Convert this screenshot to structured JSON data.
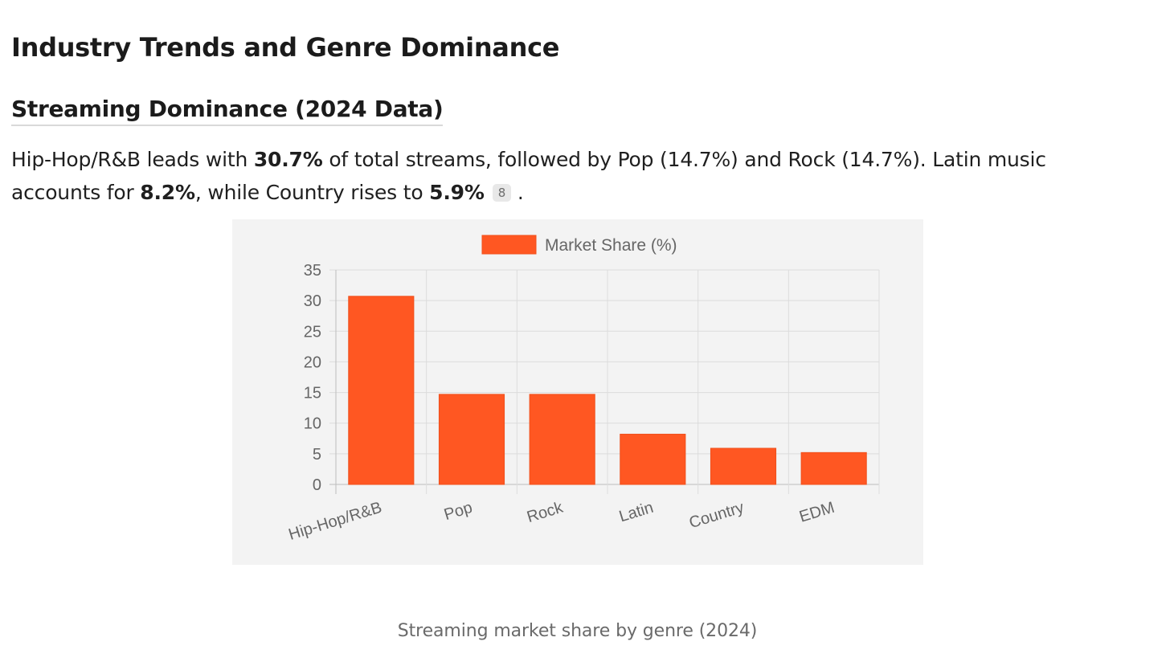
{
  "heading": {
    "title": "Industry Trends and Genre Dominance"
  },
  "section": {
    "title": "Streaming Dominance (2024 Data)"
  },
  "paragraph": {
    "p1": "Hip-Hop/R&B leads with ",
    "b1": "30.7%",
    "p2": " of total streams, followed by Pop (14.7%) and Rock (14.7%). Latin music accounts for ",
    "b2": "8.2%",
    "p3": ", while Country rises to ",
    "b3": "5.9%",
    "citation": "8",
    "p4": "."
  },
  "caption": "Streaming market share by genre (2024)",
  "chart_data": {
    "type": "bar",
    "categories": [
      "Hip-Hop/R&B",
      "Pop",
      "Rock",
      "Latin",
      "Country",
      "EDM"
    ],
    "series": [
      {
        "name": "Market Share (%)",
        "values": [
          30.7,
          14.7,
          14.7,
          8.2,
          5.9,
          5.2
        ],
        "color": "#ff5722"
      }
    ],
    "ylim": [
      0,
      35
    ],
    "yticks": [
      0,
      5,
      10,
      15,
      20,
      25,
      30,
      35
    ],
    "legend_position": "top",
    "grid": true,
    "xlabel": "",
    "ylabel": ""
  }
}
